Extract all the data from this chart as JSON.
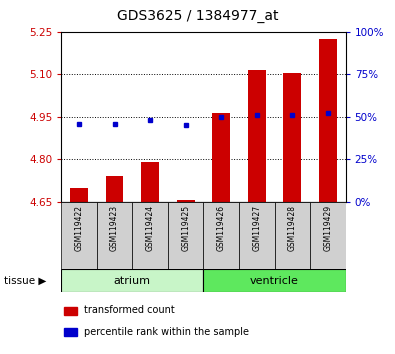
{
  "title": "GDS3625 / 1384977_at",
  "samples": [
    "GSM119422",
    "GSM119423",
    "GSM119424",
    "GSM119425",
    "GSM119426",
    "GSM119427",
    "GSM119428",
    "GSM119429"
  ],
  "transformed_count": [
    4.7,
    4.74,
    4.79,
    4.655,
    4.965,
    5.115,
    5.105,
    5.225
  ],
  "percentile_rank": [
    46,
    46,
    48,
    45,
    50,
    51,
    51,
    52
  ],
  "base_value": 4.65,
  "tissue_groups": [
    {
      "label": "atrium",
      "start": 0,
      "end": 3,
      "color": "#c8f5c8"
    },
    {
      "label": "ventricle",
      "start": 4,
      "end": 7,
      "color": "#5ee85e"
    }
  ],
  "ylim_left": [
    4.65,
    5.25
  ],
  "ylim_right": [
    0,
    100
  ],
  "yticks_left": [
    4.65,
    4.8,
    4.95,
    5.1,
    5.25
  ],
  "yticks_right": [
    0,
    25,
    50,
    75,
    100
  ],
  "bar_color": "#cc0000",
  "dot_color": "#0000cc",
  "left_tick_color": "#cc0000",
  "right_tick_color": "#0000cc",
  "gray_box_color": "#d0d0d0"
}
